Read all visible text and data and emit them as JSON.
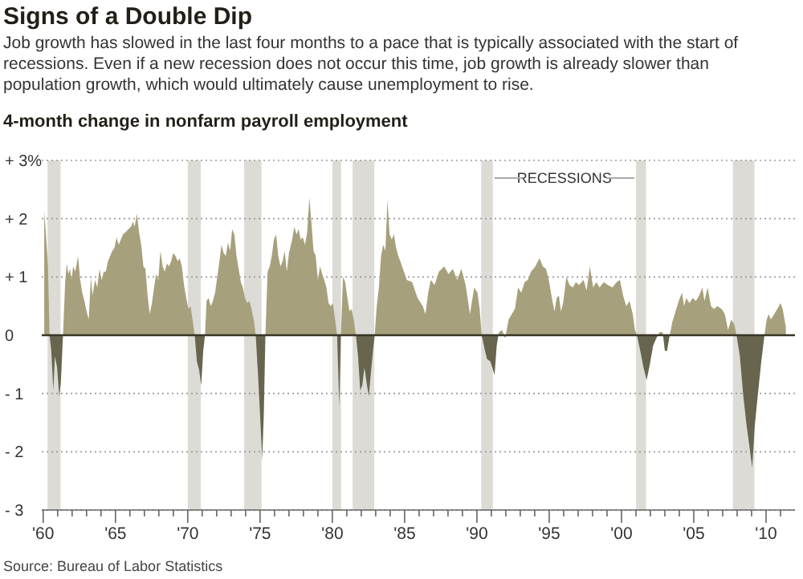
{
  "chart_data": {
    "type": "area",
    "title": "Signs of a Double Dip",
    "subtitle": "Job growth has slowed in the last four months to a pace that is typically associated with the start of recessions. Even if a new recession does not occur this time, job growth is already slower than population growth, which would ultimately cause unemployment to rise.",
    "ylabel": "4-month change in nonfarm payroll employment",
    "annotations": [
      "RECESSIONS",
      "Source: Bureau of Labor Statistics"
    ],
    "series": [
      {
        "color": "#a6a07c",
        "x": [
          1960.07,
          1960.19,
          1960.33,
          1960.44,
          1960.56,
          1960.7,
          1960.81,
          1960.96,
          1961.11,
          1961.22,
          1961.37,
          1961.52,
          1961.63,
          1961.74,
          1961.85,
          1961.96,
          1962.07,
          1962.22,
          1962.41,
          1962.56,
          1962.7,
          1962.85,
          1963.0,
          1963.15,
          1963.3,
          1963.41,
          1963.59,
          1963.74,
          1963.89,
          1964.04,
          1964.19,
          1964.33,
          1964.48,
          1964.63,
          1964.78,
          1964.93,
          1965.07,
          1965.22,
          1965.37,
          1965.52,
          1965.7,
          1965.89,
          1966.07,
          1966.22,
          1966.33,
          1966.48,
          1966.63,
          1966.78,
          1966.93,
          1967.07,
          1967.22,
          1967.37,
          1967.52,
          1967.67,
          1967.81,
          1967.96,
          1968.11,
          1968.26,
          1968.41,
          1968.56,
          1968.7,
          1968.85,
          1969.0,
          1969.15,
          1969.3,
          1969.44,
          1969.59,
          1969.74,
          1969.89,
          1970.04,
          1970.19,
          1970.33,
          1970.48,
          1970.63,
          1970.78,
          1970.93,
          1971.07,
          1971.19,
          1971.3,
          1971.44,
          1971.59,
          1971.74,
          1971.89,
          1972.04,
          1972.19,
          1972.33,
          1972.48,
          1972.63,
          1972.78,
          1972.93,
          1973.07,
          1973.22,
          1973.37,
          1973.52,
          1973.67,
          1973.81,
          1973.96,
          1974.11,
          1974.26,
          1974.41,
          1974.56,
          1974.7,
          1974.85,
          1975.0,
          1975.15,
          1975.26,
          1975.37,
          1975.52,
          1975.67,
          1975.81,
          1975.96,
          1976.11,
          1976.26,
          1976.41,
          1976.56,
          1976.7,
          1976.85,
          1977.0,
          1977.22,
          1977.37,
          1977.52,
          1977.67,
          1977.81,
          1977.96,
          1978.11,
          1978.26,
          1978.41,
          1978.56,
          1978.7,
          1978.85,
          1979.0,
          1979.15,
          1979.3,
          1979.44,
          1979.59,
          1979.74,
          1979.89,
          1980.04,
          1980.19,
          1980.33,
          1980.48,
          1980.59,
          1980.74,
          1980.89,
          1981.04,
          1981.19,
          1981.33,
          1981.48,
          1981.63,
          1981.78,
          1981.93,
          1982.07,
          1982.22,
          1982.37,
          1982.52,
          1982.67,
          1982.81,
          1982.93,
          1983.07,
          1983.22,
          1983.37,
          1983.52,
          1983.67,
          1983.81,
          1983.96,
          1984.11,
          1984.26,
          1984.41,
          1984.56,
          1984.7,
          1985.15,
          1985.52,
          1985.89,
          1986.26,
          1986.44,
          1986.63,
          1986.81,
          1987.07,
          1987.37,
          1987.74,
          1988.04,
          1988.33,
          1988.63,
          1988.93,
          1989.22,
          1989.52,
          1989.81,
          1990.04,
          1990.19,
          1990.33,
          1990.56,
          1990.7,
          1990.93,
          1991.22,
          1991.37,
          1991.52,
          1991.74,
          1991.96,
          1992.19,
          1992.41,
          1992.63,
          1992.85,
          1993.07,
          1993.3,
          1993.52,
          1993.74,
          1994.04,
          1994.33,
          1994.56,
          1994.78,
          1995.0,
          1995.22,
          1995.37,
          1995.52,
          1995.67,
          1995.81,
          1995.96,
          1996.19,
          1996.41,
          1996.63,
          1996.85,
          1997.07,
          1997.37,
          1997.59,
          1997.81,
          1998.04,
          1998.26,
          1998.48,
          1998.78,
          1999.07,
          1999.37,
          1999.67,
          1999.89,
          2000.11,
          2000.33,
          2000.56,
          2000.78,
          2000.93,
          2001.07,
          2001.3,
          2001.52,
          2001.74,
          2001.96,
          2002.19,
          2002.41,
          2002.63,
          2002.85,
          2003.0,
          2003.15,
          2003.3,
          2003.52,
          2003.74,
          2003.96,
          2004.19,
          2004.33,
          2004.48,
          2004.7,
          2004.93,
          2005.15,
          2005.37,
          2005.59,
          2005.74,
          2005.96,
          2006.19,
          2006.41,
          2006.63,
          2006.93,
          2007.15,
          2007.37,
          2007.59,
          2007.81,
          2007.96,
          2008.19,
          2008.41,
          2008.63,
          2008.85,
          2009.04,
          2009.22,
          2009.44,
          2009.67,
          2009.89,
          2010.04,
          2010.19,
          2010.33,
          2010.56,
          2010.78,
          2011.0,
          2011.15,
          2011.37
        ],
        "values": [
          2.14,
          1.73,
          1.18,
          0,
          -0.27,
          -0.95,
          -0.36,
          -0.55,
          -1.05,
          -0.82,
          0,
          0.91,
          1.23,
          1.05,
          1.14,
          0.95,
          1.18,
          1.09,
          1.36,
          0.95,
          0.73,
          0.59,
          0.41,
          0.27,
          1.0,
          0.68,
          0.95,
          0.82,
          1.14,
          0.95,
          1.09,
          1.09,
          1.27,
          1.36,
          1.45,
          1.5,
          1.68,
          1.55,
          1.64,
          1.73,
          1.77,
          1.82,
          1.86,
          1.95,
          1.86,
          2.09,
          1.77,
          1.55,
          1.18,
          1.14,
          0.68,
          0.36,
          0.55,
          0.82,
          1.05,
          0.95,
          1.45,
          1.18,
          1.09,
          1.23,
          1.18,
          1.27,
          1.41,
          1.36,
          1.27,
          1.32,
          1.18,
          0.86,
          0.64,
          0.45,
          0.5,
          0.27,
          0,
          -0.45,
          -0.59,
          -0.86,
          -0.27,
          0,
          0.59,
          0.64,
          0.5,
          0.59,
          0.73,
          1.0,
          1.27,
          1.55,
          1.41,
          1.36,
          1.59,
          1.45,
          1.82,
          1.73,
          1.36,
          1.14,
          0.91,
          0.82,
          0.64,
          0.55,
          0.59,
          0.45,
          0.27,
          0,
          -0.64,
          -1.36,
          -2.14,
          -1.36,
          0,
          1.09,
          1.18,
          1.36,
          1.64,
          1.73,
          1.36,
          1.18,
          1.27,
          1.45,
          1.09,
          1.41,
          1.64,
          1.86,
          1.73,
          1.82,
          1.64,
          1.68,
          1.55,
          1.77,
          2.36,
          1.91,
          1.45,
          1.36,
          0.95,
          1.18,
          1.05,
          0.95,
          0.82,
          0.55,
          0.5,
          0.55,
          0.27,
          0,
          -1.23,
          0,
          1.0,
          0.91,
          0.64,
          0.41,
          0.45,
          0.27,
          0,
          -0.36,
          -0.95,
          -0.86,
          -0.55,
          -0.82,
          -1.05,
          -0.64,
          -0.27,
          0,
          0.5,
          0.82,
          1.36,
          1.55,
          1.45,
          2.32,
          1.73,
          1.64,
          1.73,
          1.5,
          1.36,
          1.27,
          0.95,
          0.91,
          0.64,
          0.5,
          0.36,
          0.73,
          0.95,
          0.86,
          1.09,
          1.18,
          1.05,
          1.14,
          0.95,
          1.14,
          0.86,
          0.36,
          0.82,
          0.73,
          0.45,
          0,
          -0.27,
          -0.41,
          -0.45,
          -0.68,
          -0.18,
          0.05,
          0.09,
          -0.05,
          0.27,
          0.36,
          0.45,
          0.82,
          0.73,
          0.91,
          0.95,
          1.09,
          1.18,
          1.32,
          1.18,
          1.14,
          0.91,
          0.59,
          0.41,
          0.64,
          0.68,
          0.41,
          0.55,
          1.0,
          0.86,
          0.82,
          0.91,
          0.86,
          0.95,
          0.77,
          1.18,
          0.82,
          0.91,
          0.82,
          0.91,
          0.86,
          0.82,
          0.91,
          0.95,
          0.68,
          0.5,
          0.59,
          0.36,
          0.09,
          0,
          -0.27,
          -0.55,
          -0.77,
          -0.5,
          -0.18,
          -0.05,
          0.05,
          0.05,
          -0.27,
          -0.27,
          -0.05,
          0.23,
          0.41,
          0.59,
          0.73,
          0.5,
          0.64,
          0.55,
          0.64,
          0.59,
          0.68,
          0.82,
          0.59,
          0.82,
          0.5,
          0.45,
          0.5,
          0.45,
          0.36,
          0.09,
          0.27,
          0.18,
          0,
          -0.36,
          -1.0,
          -1.5,
          -1.91,
          -2.27,
          -1.55,
          -1.0,
          -0.45,
          0,
          0.27,
          0.36,
          0.27,
          0.36,
          0.45,
          0.55,
          0.45,
          0.14
        ]
      }
    ],
    "xlim": [
      1959.9,
      2012
    ],
    "xticks": [
      {
        "value": 1960,
        "label": "'60"
      },
      {
        "value": 1961,
        "label": null
      },
      {
        "value": 1962,
        "label": null
      },
      {
        "value": 1963,
        "label": null
      },
      {
        "value": 1964,
        "label": null
      },
      {
        "value": 1965,
        "label": "'65"
      },
      {
        "value": 1966,
        "label": null
      },
      {
        "value": 1967,
        "label": null
      },
      {
        "value": 1968,
        "label": null
      },
      {
        "value": 1969,
        "label": null
      },
      {
        "value": 1970,
        "label": "'70"
      },
      {
        "value": 1971,
        "label": null
      },
      {
        "value": 1972,
        "label": null
      },
      {
        "value": 1973,
        "label": null
      },
      {
        "value": 1974,
        "label": null
      },
      {
        "value": 1975,
        "label": "'75"
      },
      {
        "value": 1976,
        "label": null
      },
      {
        "value": 1977,
        "label": null
      },
      {
        "value": 1978,
        "label": null
      },
      {
        "value": 1979,
        "label": null
      },
      {
        "value": 1980,
        "label": "'80"
      },
      {
        "value": 1981,
        "label": null
      },
      {
        "value": 1982,
        "label": null
      },
      {
        "value": 1983,
        "label": null
      },
      {
        "value": 1984,
        "label": null
      },
      {
        "value": 1985,
        "label": "'85"
      },
      {
        "value": 1986,
        "label": null
      },
      {
        "value": 1987,
        "label": null
      },
      {
        "value": 1988,
        "label": null
      },
      {
        "value": 1989,
        "label": null
      },
      {
        "value": 1990,
        "label": "'90"
      },
      {
        "value": 1991,
        "label": null
      },
      {
        "value": 1992,
        "label": null
      },
      {
        "value": 1993,
        "label": null
      },
      {
        "value": 1994,
        "label": null
      },
      {
        "value": 1995,
        "label": "'95"
      },
      {
        "value": 1996,
        "label": null
      },
      {
        "value": 1997,
        "label": null
      },
      {
        "value": 1998,
        "label": null
      },
      {
        "value": 1999,
        "label": null
      },
      {
        "value": 2000,
        "label": "'00"
      },
      {
        "value": 2001,
        "label": null
      },
      {
        "value": 2002,
        "label": null
      },
      {
        "value": 2003,
        "label": null
      },
      {
        "value": 2004,
        "label": null
      },
      {
        "value": 2005,
        "label": "'05"
      },
      {
        "value": 2006,
        "label": null
      },
      {
        "value": 2007,
        "label": null
      },
      {
        "value": 2008,
        "label": null
      },
      {
        "value": 2009,
        "label": null
      },
      {
        "value": 2010,
        "label": "'10"
      },
      {
        "value": 2011,
        "label": null
      }
    ],
    "ylim": [
      -3,
      3
    ],
    "yticks": [
      {
        "value": 3,
        "label": "+ 3%"
      },
      {
        "value": 2,
        "label": "+ 2"
      },
      {
        "value": 1,
        "label": "+ 1"
      },
      0,
      {
        "value": -1,
        "label": "- 1"
      },
      {
        "value": -2,
        "label": "- 2"
      },
      {
        "value": -3,
        "label": "- 3"
      }
    ],
    "ref_lines": [
      {
        "axis": "y",
        "value": 0,
        "color": "#3a3626"
      }
    ],
    "bands": [
      {
        "axis": "x",
        "from": 1960.3,
        "to": 1961.2,
        "color": "#dddbd6"
      },
      {
        "axis": "x",
        "from": 1970.0,
        "to": 1970.9,
        "color": "#dddbd6"
      },
      {
        "axis": "x",
        "from": 1973.9,
        "to": 1975.1,
        "color": "#dddbd6"
      },
      {
        "axis": "x",
        "from": 1980.0,
        "to": 1980.6,
        "color": "#dddbd6"
      },
      {
        "axis": "x",
        "from": 1981.4,
        "to": 1982.9,
        "color": "#dddbd6"
      },
      {
        "axis": "x",
        "from": 1990.3,
        "to": 1991.1,
        "color": "#dddbd6"
      },
      {
        "axis": "x",
        "from": 2001.0,
        "to": 2001.7,
        "color": "#dddbd6"
      },
      {
        "axis": "x",
        "from": 2007.7,
        "to": 2009.2,
        "color": "#dddbd6"
      }
    ],
    "grid": "y"
  }
}
